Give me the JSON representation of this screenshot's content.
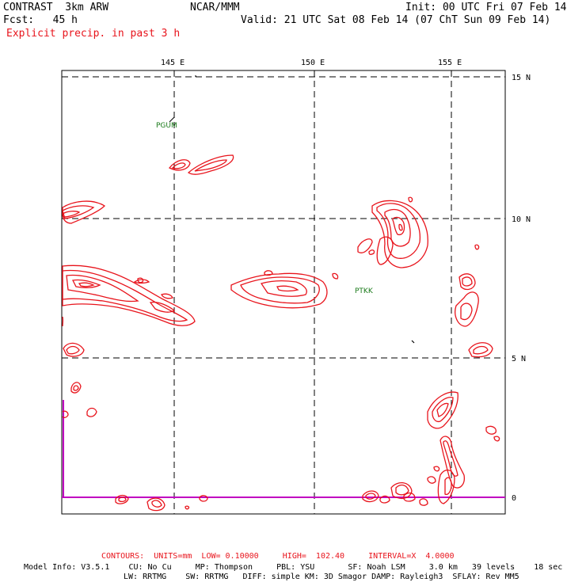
{
  "header": {
    "model": "CONTRAST  3km ARW",
    "org": "NCAR/MMM",
    "init": "Init: 00 UTC Fri 07 Feb 14",
    "fcst": "Fcst:   45 h",
    "valid": "Valid: 21 UTC Sat 08 Feb 14 (07 ChT Sun 09 Feb 14)",
    "field": "Explicit precip. in past 3 h"
  },
  "map": {
    "lon_labels": [
      "145 E",
      "150 E",
      "155 E"
    ],
    "lat_labels": [
      "15 N",
      "10 N",
      "5 N",
      "0"
    ],
    "stations": [
      "PGUM",
      "PTKK"
    ],
    "contour_color": "#e8141c",
    "equator_color": "#c000c0"
  },
  "footer": {
    "contours": "CONTOURS:  UNITS=mm  LOW= 0.10000     HIGH=  102.40     INTERVAL=X  4.0000",
    "model_info_1": "Model Info: V3.5.1    CU: No Cu     MP: Thompson     PBL: YSU       SF: Noah LSM     3.0 km   39 levels    18 sec",
    "model_info_2": "LW: RRTMG    SW: RRTMG   DIFF: simple KM: 3D Smagor DAMP: Rayleigh3  SFLAY: Rev MM5"
  }
}
